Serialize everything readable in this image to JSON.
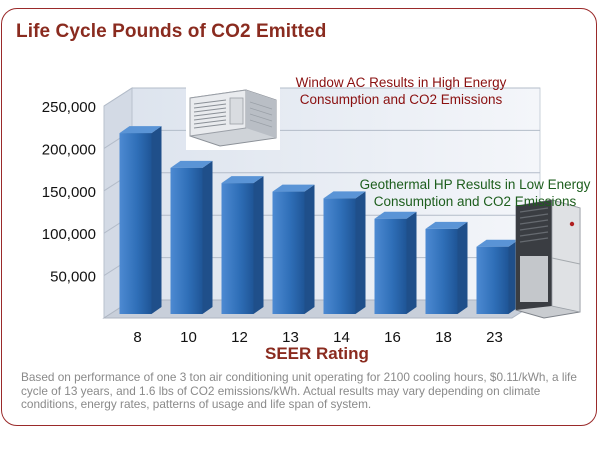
{
  "title": "Life Cycle Pounds of CO2 Emitted",
  "callouts": {
    "window_ac_line1": "Window AC Results in High Energy",
    "window_ac_line2": "Consumption and CO2 Emissions",
    "geothermal_line1": "Geothermal HP Results in Low Energy",
    "geothermal_line2": "Consumption and CO2 Emissions"
  },
  "footnote": "Based on performance of one 3 ton air conditioning unit operating for 2100 cooling hours, $0.11/kWh, a life cycle of 13 years, and 1.6 lbs of CO2 emissions/kWh. Actual results may vary depending on climate conditions, energy rates, patterns of usage and life span of system.",
  "colors": {
    "bar": "#2f6fb8",
    "bar_dark": "#1f4f8a",
    "bar_light": "#5a94d6",
    "title": "#8a2b1f",
    "frame": "#9a2a2a"
  },
  "chart_data": {
    "type": "bar",
    "title": "Life Cycle Pounds of CO2 Emitted",
    "xlabel": "SEER Rating",
    "ylabel": "",
    "categories": [
      "8",
      "10",
      "12",
      "13",
      "14",
      "16",
      "18",
      "23"
    ],
    "values": [
      211000,
      170000,
      152000,
      142000,
      134000,
      110000,
      98000,
      77000
    ],
    "ylim": [
      0,
      250000
    ],
    "yticks": [
      50000,
      100000,
      150000,
      200000,
      250000
    ],
    "ytick_labels": [
      "50,000",
      "100,000",
      "150,000",
      "200,000",
      "250,000"
    ],
    "grid": true,
    "style": "3d"
  }
}
